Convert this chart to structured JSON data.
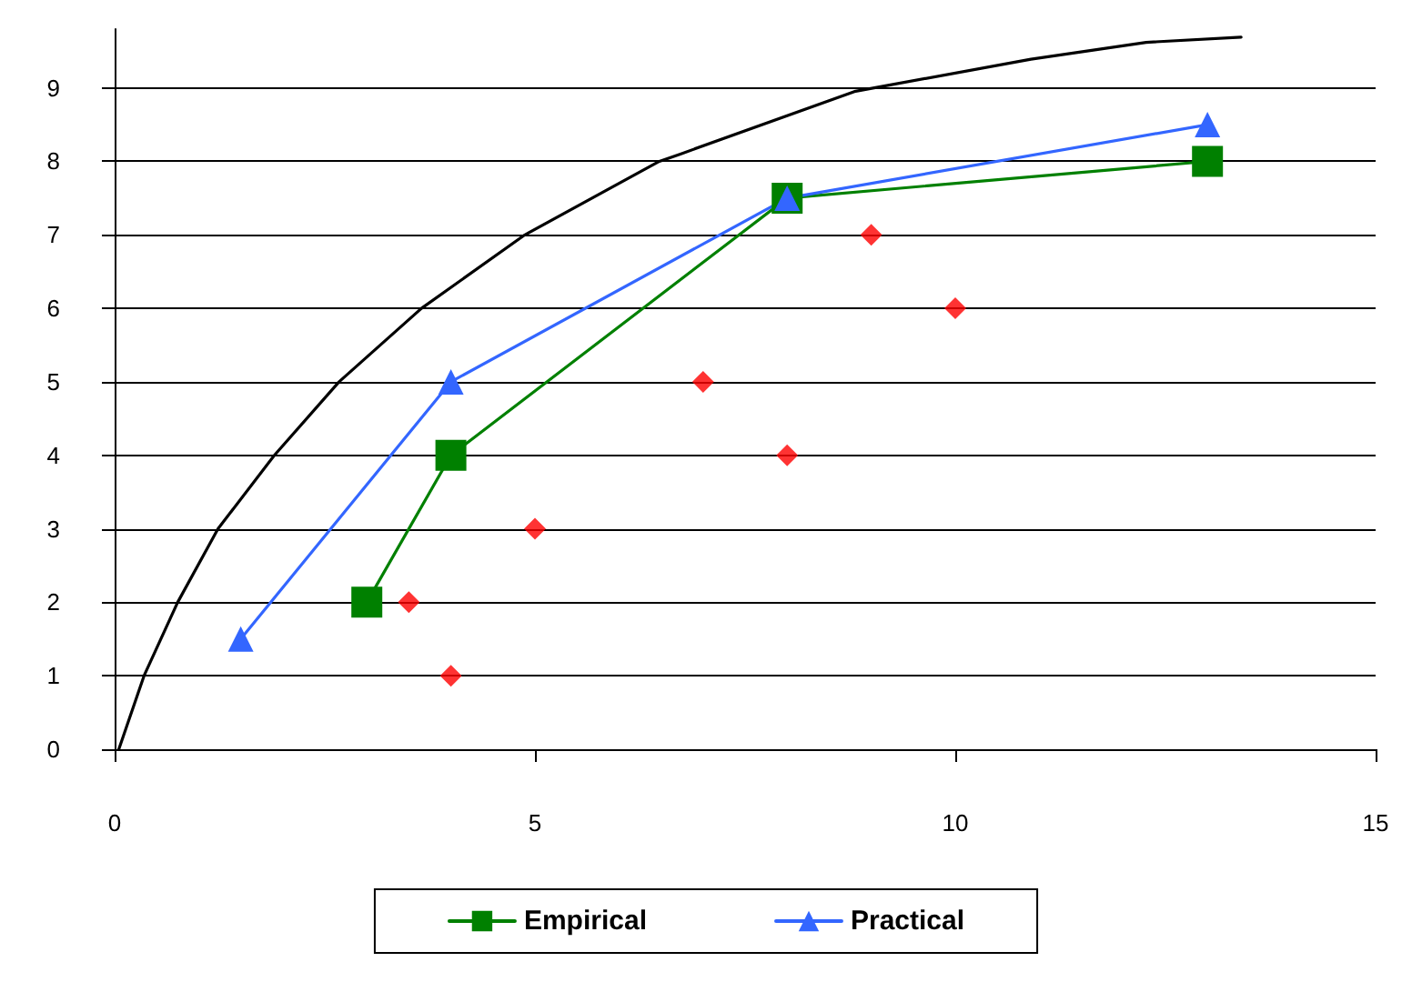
{
  "chart_data": {
    "type": "line",
    "xlim": [
      0,
      15
    ],
    "xticks": [
      0,
      5,
      10,
      15
    ],
    "ylim": [
      0,
      9.8
    ],
    "yticks": [
      0,
      1,
      2,
      3,
      4,
      5,
      6,
      7,
      8,
      9
    ],
    "grid": "y",
    "legend": "bottom",
    "line_style": "solid",
    "series": [
      {
        "color": "#000000",
        "marker": "none",
        "x": [
          0.05,
          0.35,
          0.75,
          1.23,
          1.9,
          2.67,
          3.65,
          4.88,
          6.48,
          6.73,
          8.8,
          10.9,
          12.27,
          13.4
        ],
        "values": [
          0,
          1,
          2,
          3,
          4,
          5,
          6,
          7,
          8,
          8.1,
          8.95,
          9.39,
          9.62,
          9.69
        ]
      },
      {
        "name": "Empirical",
        "color": "#008000",
        "marker": "square",
        "x": [
          3,
          4,
          8,
          13
        ],
        "values": [
          2,
          4,
          7.5,
          8
        ]
      },
      {
        "name": "Practical",
        "color": "#3366ff",
        "marker": "triangle",
        "x": [
          1.5,
          4,
          8,
          13
        ],
        "values": [
          1.5,
          5,
          7.5,
          8.5
        ]
      },
      {
        "type": "scatter",
        "color": "#ff0000",
        "marker": "diamond",
        "x": [
          3.5,
          4,
          5,
          7,
          8,
          9,
          10
        ],
        "values": [
          2,
          1,
          3,
          5,
          4,
          7,
          6
        ]
      }
    ]
  }
}
